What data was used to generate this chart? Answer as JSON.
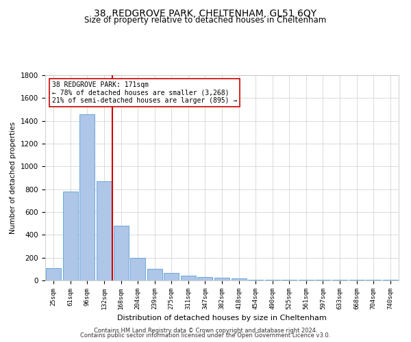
{
  "title1": "38, REDGROVE PARK, CHELTENHAM, GL51 6QY",
  "title2": "Size of property relative to detached houses in Cheltenham",
  "xlabel": "Distribution of detached houses by size in Cheltenham",
  "ylabel": "Number of detached properties",
  "categories": [
    "25sqm",
    "61sqm",
    "96sqm",
    "132sqm",
    "168sqm",
    "204sqm",
    "239sqm",
    "275sqm",
    "311sqm",
    "347sqm",
    "382sqm",
    "418sqm",
    "454sqm",
    "490sqm",
    "525sqm",
    "561sqm",
    "597sqm",
    "633sqm",
    "668sqm",
    "704sqm",
    "740sqm"
  ],
  "values": [
    110,
    780,
    1460,
    870,
    480,
    200,
    100,
    65,
    45,
    30,
    25,
    20,
    5,
    5,
    5,
    5,
    5,
    5,
    5,
    5,
    5
  ],
  "bar_color": "#aec6e8",
  "bar_edge_color": "#5a9fd4",
  "vline_pos": 3.5,
  "vline_color": "#cc0000",
  "annotation_line1": "38 REDGROVE PARK: 171sqm",
  "annotation_line2": "← 78% of detached houses are smaller (3,268)",
  "annotation_line3": "21% of semi-detached houses are larger (895) →",
  "annotation_box_color": "#ffffff",
  "annotation_box_edge": "#cc0000",
  "footer1": "Contains HM Land Registry data © Crown copyright and database right 2024.",
  "footer2": "Contains public sector information licensed under the Open Government Licence v3.0.",
  "ylim": [
    0,
    1800
  ],
  "yticks": [
    0,
    200,
    400,
    600,
    800,
    1000,
    1200,
    1400,
    1600,
    1800
  ],
  "bg_color": "#ffffff",
  "grid_color": "#cccccc"
}
